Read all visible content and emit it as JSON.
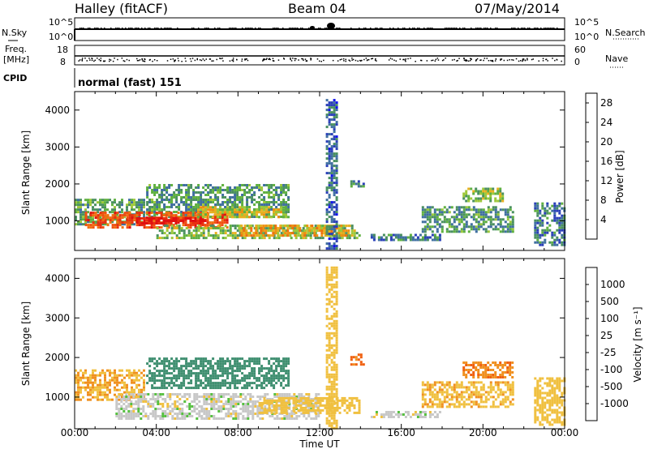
{
  "header": {
    "site": "Halley (fitACF)",
    "beam": "Beam 04",
    "date": "07/May/2014"
  },
  "summary_panels": {
    "nsky_label": "N.Sky",
    "nsearch_label": "N.Search",
    "noise_ticks_left": [
      "10^5",
      "10^0"
    ],
    "noise_ticks_right": [
      "10^5",
      "10^0"
    ],
    "freq_label_line1": "Freq.",
    "freq_label_line2": "[MHz]",
    "freq_ticks": [
      "18",
      "8"
    ],
    "nave_label": "Nave",
    "nave_ticks": [
      "60",
      "0"
    ],
    "cpid_label": "CPID",
    "cpid_text": "normal (fast) 151"
  },
  "chart_data": [
    {
      "type": "heatmap",
      "name": "power",
      "ylabel": "Slant Range [km]",
      "xlabel": "Time UT",
      "xlim_hours": [
        0,
        24
      ],
      "ylim_km": [
        200,
        4500
      ],
      "x_ticks": [
        "00:00",
        "04:00",
        "08:00",
        "12:00",
        "16:00",
        "20:00",
        "00:00"
      ],
      "y_ticks": [
        "1000",
        "2000",
        "3000",
        "4000"
      ],
      "colorbar": {
        "label": "Power [dB]",
        "ticks": [
          "4",
          "8",
          "12",
          "16",
          "20",
          "24",
          "28"
        ],
        "range": [
          0,
          30
        ],
        "colors": [
          "#1010ee",
          "#2a3fb8",
          "#3f6fa0",
          "#4a9060",
          "#5fb040",
          "#9dc83a",
          "#e8b020",
          "#f09010",
          "#f07010",
          "#f05010",
          "#e83010",
          "#e01010"
        ]
      },
      "regions": [
        {
          "t0": 0.0,
          "t1": 3.5,
          "r0": 900,
          "r1": 1600,
          "level": 10
        },
        {
          "t0": 3.5,
          "t1": 10.5,
          "r0": 1100,
          "r1": 2000,
          "level": 9
        },
        {
          "t0": 0.5,
          "t1": 7.5,
          "r0": 800,
          "r1": 1250,
          "level": 24
        },
        {
          "t0": 3.0,
          "t1": 6.5,
          "r0": 900,
          "r1": 1100,
          "level": 29
        },
        {
          "t0": 6.0,
          "t1": 10.5,
          "r0": 1100,
          "r1": 1400,
          "level": 15
        },
        {
          "t0": 4.0,
          "t1": 14.0,
          "r0": 500,
          "r1": 900,
          "level": 12
        },
        {
          "t0": 8.0,
          "t1": 13.5,
          "r0": 600,
          "r1": 900,
          "level": 18
        },
        {
          "t0": 12.3,
          "t1": 12.9,
          "r0": 200,
          "r1": 4300,
          "level": 6
        },
        {
          "t0": 13.5,
          "t1": 14.2,
          "r0": 1900,
          "r1": 2100,
          "level": 8
        },
        {
          "t0": 14.5,
          "t1": 18.0,
          "r0": 450,
          "r1": 650,
          "level": 7
        },
        {
          "t0": 17.0,
          "t1": 21.5,
          "r0": 700,
          "r1": 1400,
          "level": 9
        },
        {
          "t0": 19.0,
          "t1": 21.0,
          "r0": 1500,
          "r1": 1900,
          "level": 12
        },
        {
          "t0": 22.5,
          "t1": 24.0,
          "r0": 300,
          "r1": 1500,
          "level": 7
        }
      ]
    },
    {
      "type": "heatmap",
      "name": "velocity",
      "ylabel": "Slant Range [km]",
      "xlabel": "Time UT",
      "xlim_hours": [
        0,
        24
      ],
      "ylim_km": [
        200,
        4500
      ],
      "x_ticks": [
        "00:00",
        "04:00",
        "08:00",
        "12:00",
        "16:00",
        "20:00",
        "00:00"
      ],
      "y_ticks": [
        "1000",
        "2000",
        "3000",
        "4000"
      ],
      "colorbar": {
        "label": "Velocity [m s⁻¹]",
        "ticks": [
          "1000",
          "500",
          "100",
          "25",
          "-25",
          "-100",
          "-500",
          "-1000"
        ],
        "colors": [
          "#1f3fc8",
          "#2f6aa8",
          "#3f8f70",
          "#56c040",
          "#c8c8c8",
          "#f0c040",
          "#f09020",
          "#f06010",
          "#e01010"
        ]
      },
      "regions": [
        {
          "t0": 0.0,
          "t1": 3.5,
          "r0": 900,
          "r1": 1700,
          "level": -100
        },
        {
          "t0": 3.5,
          "t1": 10.5,
          "r0": 1200,
          "r1": 2000,
          "level": 300
        },
        {
          "t0": 2.0,
          "t1": 12.0,
          "r0": 400,
          "r1": 1100,
          "level": 0
        },
        {
          "t0": 9.0,
          "t1": 14.0,
          "r0": 600,
          "r1": 1000,
          "level": -60
        },
        {
          "t0": 12.3,
          "t1": 12.9,
          "r0": 200,
          "r1": 4300,
          "level": -60
        },
        {
          "t0": 13.5,
          "t1": 14.2,
          "r0": 1800,
          "r1": 2100,
          "level": -600
        },
        {
          "t0": 14.5,
          "t1": 18.0,
          "r0": 450,
          "r1": 650,
          "level": 0
        },
        {
          "t0": 17.0,
          "t1": 21.5,
          "r0": 700,
          "r1": 1400,
          "level": -80
        },
        {
          "t0": 19.0,
          "t1": 21.5,
          "r0": 1500,
          "r1": 1900,
          "level": -400
        },
        {
          "t0": 22.5,
          "t1": 24.0,
          "r0": 300,
          "r1": 1500,
          "level": -60
        }
      ]
    }
  ]
}
